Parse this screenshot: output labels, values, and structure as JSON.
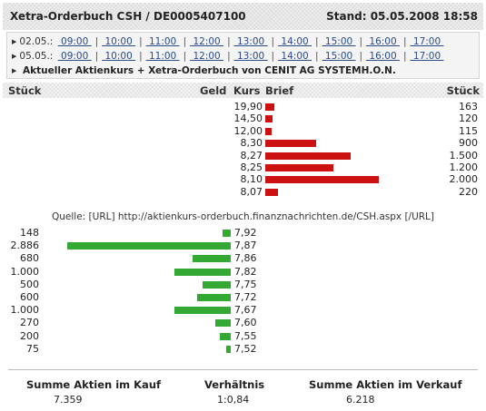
{
  "header": {
    "title": "Xetra-Orderbuch CSH / DE0005407100",
    "stand": "Stand: 05.05.2008 18:58"
  },
  "nav": {
    "rows": [
      {
        "date": "02.05.:",
        "times": [
          "09:00",
          "10:00",
          "11:00",
          "12:00",
          "13:00",
          "14:00",
          "15:00",
          "16:00",
          "17:00"
        ]
      },
      {
        "date": "05.05.:",
        "times": [
          "09:00",
          "10:00",
          "11:00",
          "12:00",
          "13:00",
          "14:00",
          "15:00",
          "16:00",
          "17:00"
        ]
      }
    ],
    "current": "Aktueller Aktienkurs + Xetra-Orderbuch von CENIT AG SYSTEMH.O.N."
  },
  "columns": {
    "stueck_left": "Stück",
    "geld": "Geld",
    "kurs": "Kurs",
    "brief": "Brief",
    "stueck_right": "Stück"
  },
  "asks": [
    {
      "price": "19,90",
      "qty": "163",
      "value": 163
    },
    {
      "price": "14,50",
      "qty": "120",
      "value": 120
    },
    {
      "price": "12,00",
      "qty": "115",
      "value": 115
    },
    {
      "price": "8,30",
      "qty": "900",
      "value": 900
    },
    {
      "price": "8,27",
      "qty": "1.500",
      "value": 1500
    },
    {
      "price": "8,25",
      "qty": "1.200",
      "value": 1200
    },
    {
      "price": "8,10",
      "qty": "2.000",
      "value": 2000
    },
    {
      "price": "8,07",
      "qty": "220",
      "value": 220
    }
  ],
  "source": "Quelle: [URL] http://aktienkurs-orderbuch.finanznachrichten.de/CSH.aspx [/URL]",
  "bids": [
    {
      "price": "7,92",
      "qty": "148",
      "value": 148
    },
    {
      "price": "7,87",
      "qty": "2.886",
      "value": 2886
    },
    {
      "price": "7,86",
      "qty": "680",
      "value": 680
    },
    {
      "price": "7,82",
      "qty": "1.000",
      "value": 1000
    },
    {
      "price": "7,75",
      "qty": "500",
      "value": 500
    },
    {
      "price": "7,72",
      "qty": "600",
      "value": 600
    },
    {
      "price": "7,67",
      "qty": "1.000",
      "value": 1000
    },
    {
      "price": "7,60",
      "qty": "270",
      "value": 270
    },
    {
      "price": "7,55",
      "qty": "200",
      "value": 200
    },
    {
      "price": "7,52",
      "qty": "75",
      "value": 75
    }
  ],
  "summary": {
    "kauf_label": "Summe Aktien im Kauf",
    "kauf_value": "7.359",
    "verhaeltnis_label": "Verhältnis",
    "verhaeltnis_value": "1:0,84",
    "verkauf_label": "Summe Aktien im Verkauf",
    "verkauf_value": "6.218"
  },
  "colors": {
    "ask_bar": "#cc1111",
    "bid_bar": "#33a833",
    "link": "#2a4a8a"
  }
}
